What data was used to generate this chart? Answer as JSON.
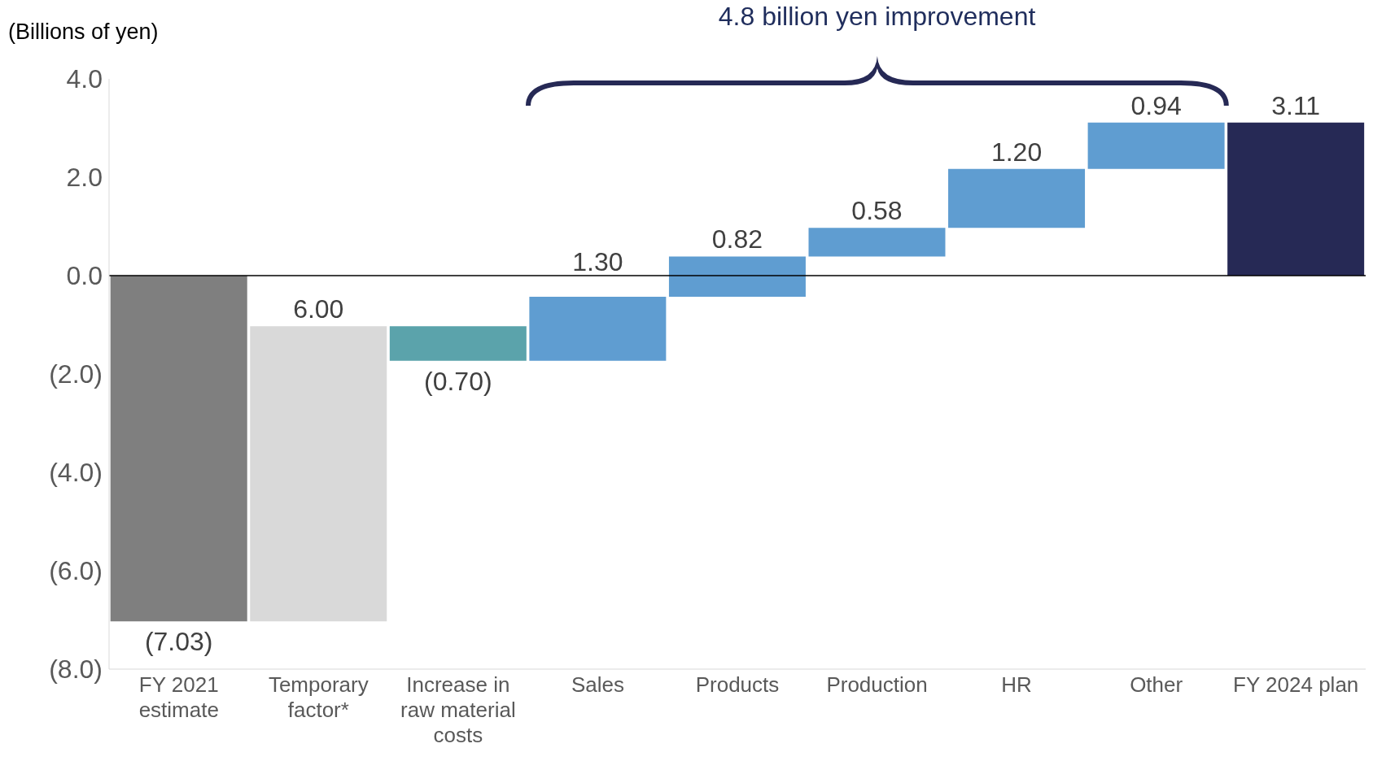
{
  "chart_data": {
    "type": "bar",
    "ylabel": "(Billions of yen)",
    "annotations": [
      "4.8 billion yen improvement"
    ],
    "categories": [
      "FY 2021 estimate",
      "Temporary factor*",
      "Increase in raw material costs",
      "Sales",
      "Products",
      "Production",
      "HR",
      "Other",
      "FY 2024 plan"
    ],
    "values": [
      -7.03,
      6.0,
      -0.7,
      1.3,
      0.82,
      0.58,
      1.2,
      0.94,
      3.11
    ],
    "base": [
      0,
      -7.03,
      -1.03,
      -1.73,
      -0.43,
      0.39,
      0.97,
      2.17,
      0
    ],
    "colors": [
      "#7f7f7f",
      "#d9d9d9",
      "#5ba3ab",
      "#5f9dd1",
      "#5f9dd1",
      "#5f9dd1",
      "#5f9dd1",
      "#5f9dd1",
      "#262955"
    ],
    "value_labels": [
      "(7.03)",
      "6.00",
      "(0.70)",
      "1.30",
      "0.82",
      "0.58",
      "1.20",
      "0.94",
      "3.11"
    ],
    "ylim": [
      -8,
      4
    ],
    "yticks": [
      {
        "value": 4,
        "label": "4.0"
      },
      {
        "value": 2,
        "label": "2.0"
      },
      {
        "value": 0,
        "label": "0.0"
      },
      {
        "value": -2,
        "label": "(2.0)"
      },
      {
        "value": -4,
        "label": "(4.0)"
      },
      {
        "value": -6,
        "label": "(6.0)"
      },
      {
        "value": -8,
        "label": "(8.0)"
      }
    ],
    "ref_lines": [
      {
        "axis": "y",
        "value": 0,
        "color": "#000000"
      }
    ],
    "grid": false,
    "legend": false
  }
}
